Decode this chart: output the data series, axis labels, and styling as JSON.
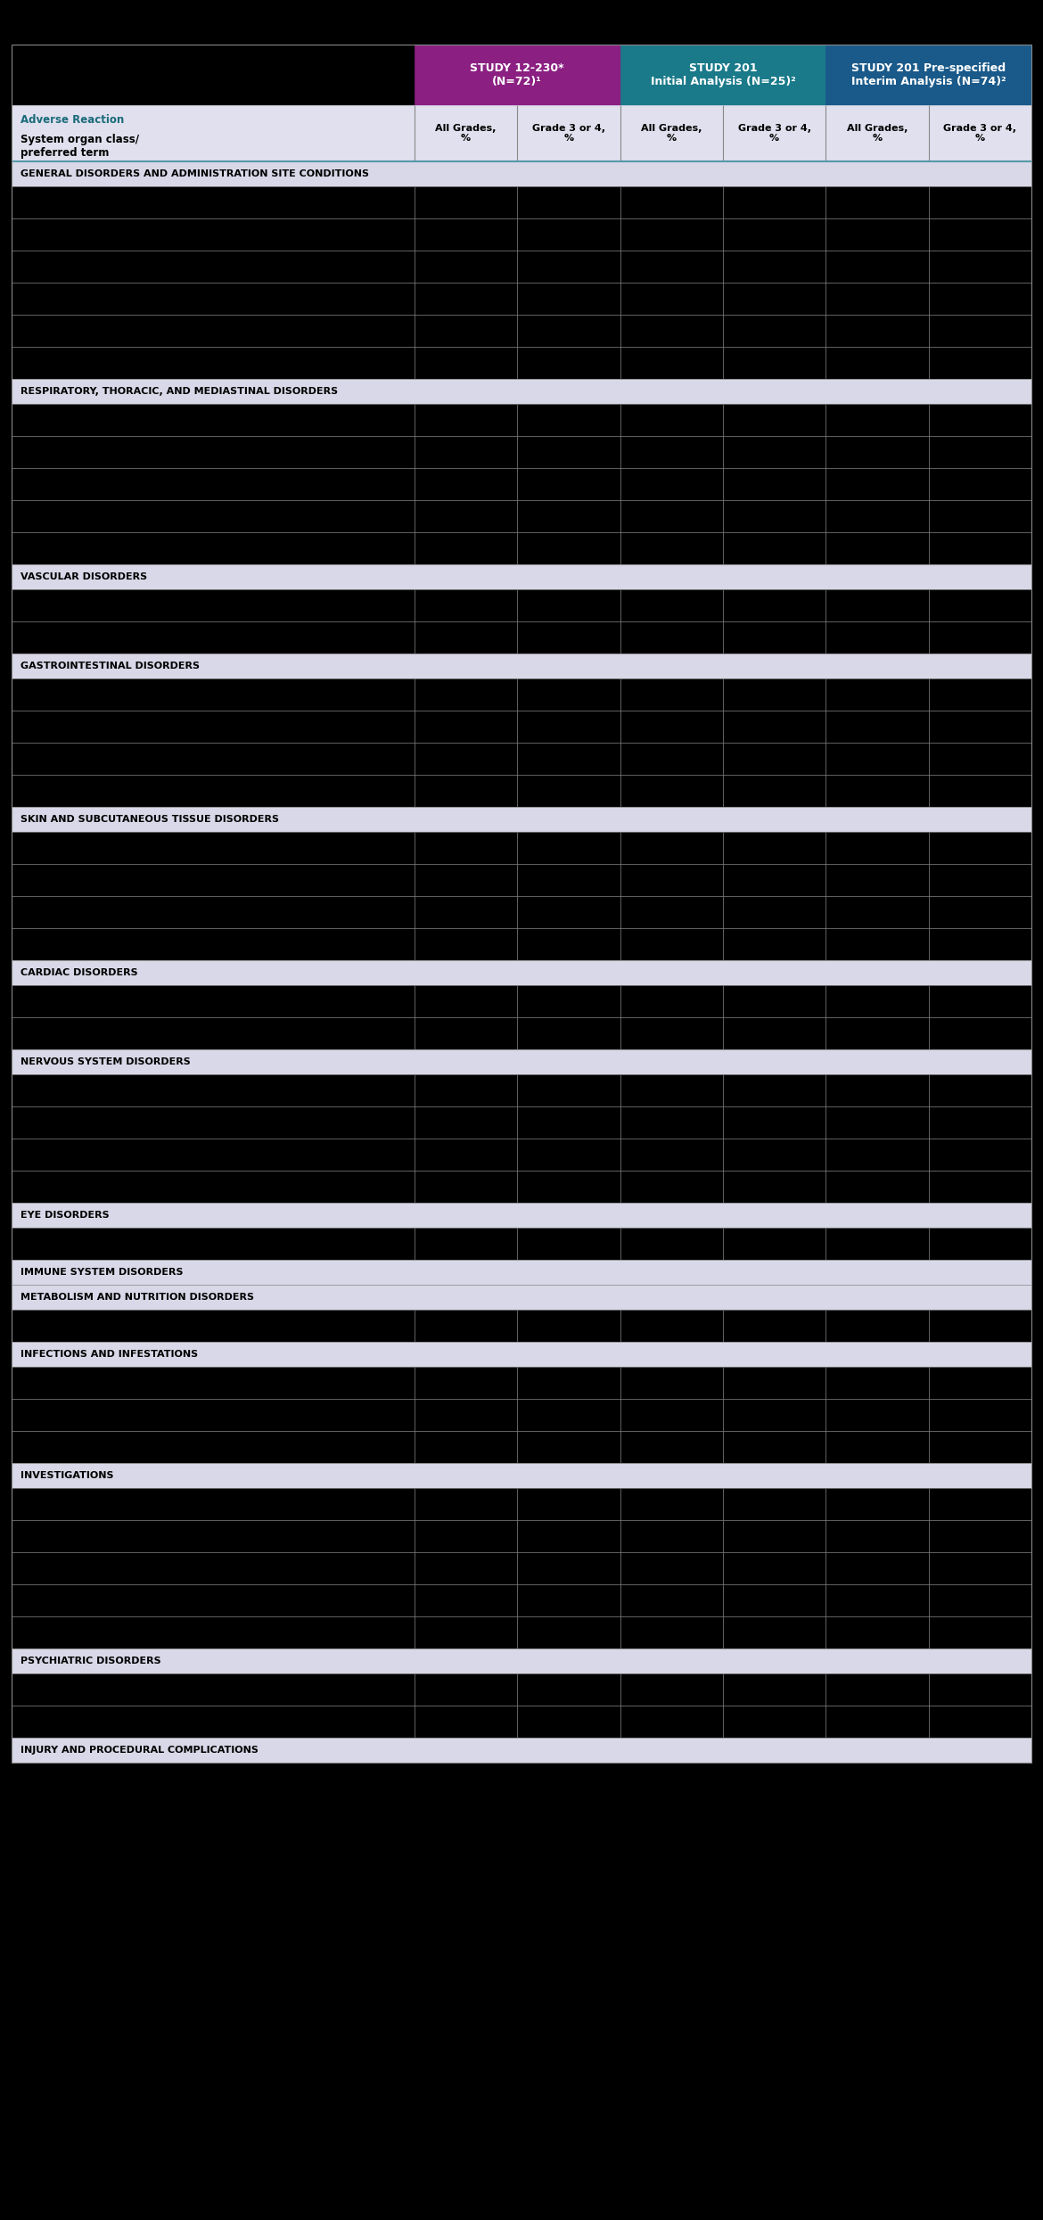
{
  "title_study1": "STUDY 12-230*\n(N=72)¹",
  "title_study2": "STUDY 201\nInitial Analysis (N=25)²",
  "title_study3": "STUDY 201 Pre-specified\nInterim Analysis (N=74)²",
  "col_header_all": "All Grades,\n%",
  "col_header_grade": "Grade 3 or 4,\n%",
  "study1_color": "#8B2082",
  "study2_color": "#1A7A8A",
  "study3_color": "#1A5A8A",
  "header_bg": "#E0E0EE",
  "section_bg": "#D8D8E8",
  "text_color_teal": "#1A6A7A",
  "sections": [
    {
      "name": "GENERAL DISORDERS AND ADMINISTRATION SITE CONDITIONS",
      "num_rows": 6
    },
    {
      "name": "RESPIRATORY, THORACIC, AND MEDIASTINAL DISORDERS",
      "num_rows": 5
    },
    {
      "name": "VASCULAR DISORDERS",
      "num_rows": 2
    },
    {
      "name": "GASTROINTESTINAL DISORDERS",
      "num_rows": 4
    },
    {
      "name": "SKIN AND SUBCUTANEOUS TISSUE DISORDERS",
      "num_rows": 4
    },
    {
      "name": "CARDIAC DISORDERS",
      "num_rows": 2
    },
    {
      "name": "NERVOUS SYSTEM DISORDERS",
      "num_rows": 4
    },
    {
      "name": "EYE DISORDERS",
      "num_rows": 1
    },
    {
      "name": "IMMUNE SYSTEM DISORDERS",
      "num_rows": 0
    },
    {
      "name": "METABOLISM AND NUTRITION DISORDERS",
      "num_rows": 1
    },
    {
      "name": "INFECTIONS AND INFESTATIONS",
      "num_rows": 3
    },
    {
      "name": "INVESTIGATIONS",
      "num_rows": 5
    },
    {
      "name": "PSYCHIATRIC DISORDERS",
      "num_rows": 2
    },
    {
      "name": "INJURY AND PROCEDURAL COMPLICATIONS",
      "num_rows": 0
    }
  ]
}
